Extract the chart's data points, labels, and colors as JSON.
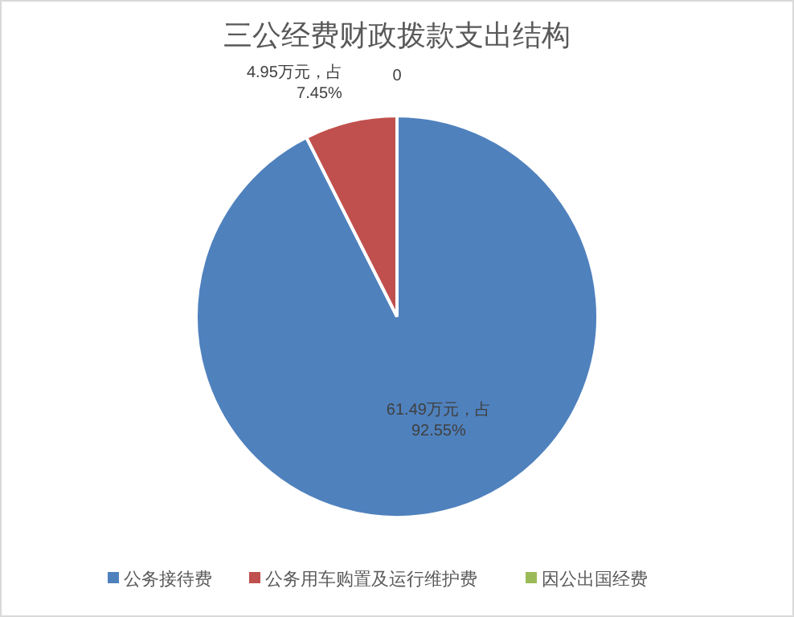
{
  "chart_data": {
    "type": "pie",
    "title": "三公经费财政拨款支出结构",
    "categories": [
      "公务接待费",
      "公务用车购置及运行维护费",
      "因公出国经费"
    ],
    "values": [
      61.49,
      4.95,
      0
    ],
    "colors": [
      "#4f81bd",
      "#c0504d",
      "#9bbb59"
    ],
    "value_labels": [
      "61.49万元，占\n92.55%",
      "4.95万元，占\n7.45%",
      "0"
    ],
    "legend": "bottom"
  }
}
